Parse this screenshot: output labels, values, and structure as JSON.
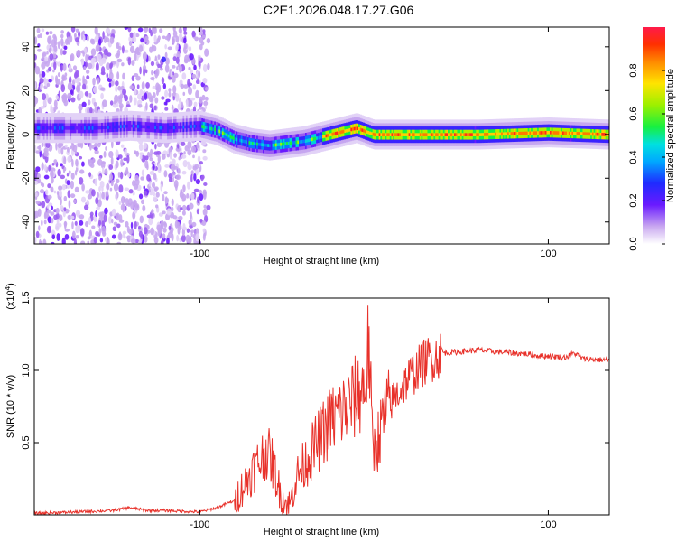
{
  "title": "C2E1.2026.048.17.27.G06",
  "chart_data": [
    {
      "type": "heatmap",
      "xlabel": "Height of straight line (km)",
      "ylabel": "Frequency (Hz)",
      "xlim": [
        -195,
        135
      ],
      "ylim": [
        -50,
        49
      ],
      "xticks": [
        -100,
        100
      ],
      "xtick_labels": [
        "-100",
        "100"
      ],
      "yticks": [
        -40,
        -20,
        0,
        20,
        40
      ],
      "ytick_labels": [
        "-40",
        "-20",
        "0",
        "20",
        "40"
      ],
      "colorbar": {
        "label": "Normalized spectral amplitude",
        "range": [
          0,
          1
        ],
        "ticks": [
          0,
          0.2,
          0.4,
          0.6,
          0.8
        ],
        "tick_labels": [
          "0.0",
          "0.2",
          "0.4",
          "0.6",
          "0.8"
        ]
      },
      "ridge_centerline": {
        "x": [
          -190,
          -160,
          -140,
          -120,
          -100,
          -90,
          -80,
          -70,
          -60,
          -50,
          -40,
          -30,
          -20,
          -10,
          0,
          20,
          60,
          100,
          135
        ],
        "freq": [
          3,
          3,
          4,
          3,
          4,
          2,
          -2,
          -4,
          -5,
          -4,
          -3,
          -1,
          1,
          3,
          0,
          0,
          0,
          1,
          0
        ]
      }
    },
    {
      "type": "line",
      "xlabel": "Height of straight line (km)",
      "ylabel": "SNR (10 * v/v)",
      "y_multiplier": "(x10",
      "y_multiplier_exp": "4",
      "y_multiplier_close": ")",
      "xlim": [
        -195,
        135
      ],
      "ylim": [
        0,
        1.5
      ],
      "xticks": [
        -100,
        100
      ],
      "xtick_labels": [
        "-100",
        "100"
      ],
      "yticks": [
        0.5,
        1.0,
        1.5
      ],
      "ytick_labels": [
        "0.5",
        "1.0",
        "1.5"
      ],
      "series": [
        {
          "name": "SNR",
          "color": "#e8312a",
          "x": [
            -195,
            -170,
            -150,
            -140,
            -130,
            -120,
            -100,
            -90,
            -80,
            -75,
            -70,
            -65,
            -62,
            -58,
            -55,
            -52,
            -50,
            -48,
            -45,
            -40,
            -35,
            -30,
            -25,
            -20,
            -15,
            -10,
            -5,
            -3,
            -1,
            0,
            3,
            5,
            10,
            20,
            30,
            40,
            50,
            60,
            70,
            80,
            90,
            95,
            100,
            110,
            115,
            120,
            135
          ],
          "y": [
            0.01,
            0.02,
            0.03,
            0.05,
            0.03,
            0.03,
            0.02,
            0.05,
            0.1,
            0.2,
            0.3,
            0.38,
            0.45,
            0.35,
            0.2,
            0.1,
            0.07,
            0.08,
            0.25,
            0.35,
            0.45,
            0.55,
            0.65,
            0.7,
            0.75,
            0.82,
            0.9,
            1.2,
            0.5,
            0.45,
            0.55,
            0.65,
            0.78,
            0.95,
            1.07,
            1.12,
            1.13,
            1.14,
            1.13,
            1.12,
            1.11,
            1.1,
            1.1,
            1.09,
            1.12,
            1.08,
            1.07
          ]
        }
      ]
    }
  ]
}
